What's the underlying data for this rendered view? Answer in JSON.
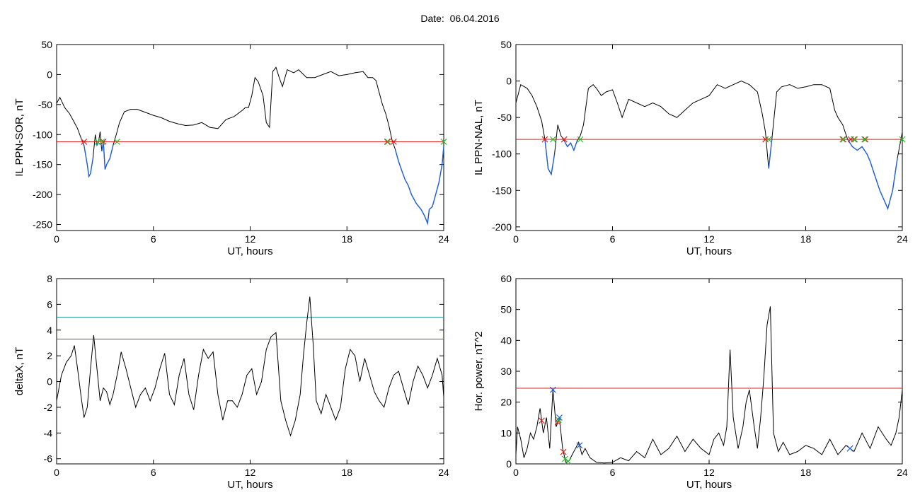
{
  "figure_title": "Date:  06.04.2016",
  "colors": {
    "signal": "#000000",
    "below_threshold": "#1f5fd6",
    "threshold": "#e02020",
    "upper_threshold": "#128a8a",
    "start_marker": "#e02020",
    "end_marker": "#2fc02f",
    "peak_marker": "#1f5fd6"
  },
  "chart_data": [
    {
      "type": "line",
      "xlabel": "UT, hours",
      "ylabel": "IL PPN-SOR, nT",
      "xlim": [
        0,
        24
      ],
      "ylim": [
        -260,
        50
      ],
      "xticks": [
        0,
        6,
        12,
        18,
        24
      ],
      "yticks": [
        50,
        0,
        -50,
        -100,
        -150,
        -200,
        -250
      ],
      "threshold": -112,
      "series": [
        {
          "x": [
            0,
            0.2,
            0.5,
            0.8,
            1.1,
            1.3,
            1.5,
            1.7,
            1.9,
            2.0,
            2.1,
            2.25,
            2.4,
            2.5,
            2.6,
            2.7,
            2.8,
            2.9,
            3.0,
            3.1,
            3.3,
            3.5,
            3.7,
            3.9,
            4.2,
            4.6,
            5.0,
            5.5,
            6.0,
            6.5,
            7.0,
            7.5,
            8.0,
            8.5,
            9.0,
            9.5,
            10.0,
            10.5,
            11.0,
            11.5,
            11.7,
            11.9,
            12.1,
            12.3,
            12.5,
            12.8,
            13.0,
            13.2,
            13.4,
            13.6,
            13.8,
            14.0,
            14.3,
            14.7,
            15.0,
            15.5,
            16.0,
            16.5,
            17.0,
            17.5,
            18.0,
            18.5,
            19.0,
            19.3,
            19.6,
            19.8,
            20.0,
            20.2,
            20.4,
            20.6,
            20.8,
            21.0,
            21.2,
            21.4,
            21.6,
            21.8,
            22.0,
            22.3,
            22.6,
            22.8,
            23.0,
            23.1,
            23.3,
            23.5,
            23.7,
            23.9,
            24.0
          ],
          "y": [
            -48,
            -38,
            -55,
            -65,
            -80,
            -90,
            -105,
            -118,
            -150,
            -170,
            -165,
            -140,
            -100,
            -118,
            -112,
            -95,
            -128,
            -112,
            -158,
            -150,
            -140,
            -118,
            -100,
            -80,
            -62,
            -58,
            -58,
            -63,
            -68,
            -72,
            -78,
            -82,
            -85,
            -84,
            -80,
            -88,
            -90,
            -75,
            -70,
            -60,
            -55,
            -55,
            -35,
            -5,
            -12,
            -35,
            -80,
            -88,
            5,
            12,
            -5,
            -20,
            8,
            3,
            8,
            -5,
            -5,
            0,
            5,
            -2,
            0,
            3,
            5,
            -5,
            -5,
            -10,
            -30,
            -50,
            -65,
            -85,
            -110,
            -125,
            -145,
            -160,
            -175,
            -185,
            -200,
            -215,
            -225,
            -235,
            -248,
            -225,
            -220,
            -200,
            -180,
            -150,
            -120
          ]
        }
      ],
      "start_markers_x": [
        1.7,
        2.9,
        20.5,
        20.9
      ],
      "end_markers_x": [
        2.55,
        2.8,
        3.75,
        20.55,
        24.0
      ]
    },
    {
      "type": "line",
      "xlabel": "UT, hours",
      "ylabel": "IL PPN-NAL, nT",
      "xlim": [
        0,
        24
      ],
      "ylim": [
        -205,
        50
      ],
      "xticks": [
        0,
        6,
        12,
        18,
        24
      ],
      "yticks": [
        50,
        0,
        -50,
        -100,
        -150,
        -200
      ],
      "threshold": -80,
      "series": [
        {
          "x": [
            0,
            0.3,
            0.7,
            1.0,
            1.3,
            1.6,
            1.8,
            2.0,
            2.2,
            2.4,
            2.6,
            2.8,
            3.0,
            3.2,
            3.4,
            3.6,
            3.8,
            4.0,
            4.2,
            4.5,
            4.8,
            5.0,
            5.3,
            5.6,
            6.0,
            6.3,
            6.6,
            7.0,
            7.5,
            8.0,
            8.5,
            9.0,
            9.5,
            10.0,
            10.5,
            11.0,
            11.5,
            12.0,
            12.5,
            13.0,
            13.5,
            14.0,
            14.5,
            15.0,
            15.3,
            15.5,
            15.7,
            15.9,
            16.2,
            16.5,
            17.0,
            17.5,
            18.0,
            18.5,
            19.0,
            19.5,
            19.8,
            20.0,
            20.3,
            20.6,
            20.9,
            21.2,
            21.5,
            21.8,
            22.0,
            22.3,
            22.6,
            22.9,
            23.1,
            23.4,
            23.7,
            24.0
          ],
          "y": [
            -30,
            -5,
            -10,
            -20,
            -35,
            -55,
            -80,
            -120,
            -128,
            -100,
            -60,
            -75,
            -82,
            -90,
            -85,
            -95,
            -82,
            -75,
            -60,
            -10,
            -5,
            -10,
            -20,
            -15,
            -12,
            -30,
            -50,
            -25,
            -30,
            -35,
            -30,
            -35,
            -45,
            -50,
            -40,
            -30,
            -25,
            -20,
            -5,
            -10,
            -5,
            0,
            -5,
            -15,
            -45,
            -70,
            -120,
            -80,
            -15,
            -8,
            -5,
            -10,
            -8,
            -5,
            -5,
            -10,
            -40,
            -50,
            -60,
            -80,
            -90,
            -95,
            -90,
            -100,
            -110,
            -130,
            -150,
            -165,
            -175,
            -150,
            -105,
            -70
          ]
        }
      ],
      "start_markers_x": [
        1.8,
        3.0,
        15.5,
        20.3,
        20.8,
        21.0,
        21.7
      ],
      "end_markers_x": [
        2.3,
        4.0,
        15.7,
        20.35,
        21.05,
        21.65,
        24.0
      ]
    },
    {
      "type": "line",
      "xlabel": "UT, hours",
      "ylabel": "deltaX, nT",
      "xlim": [
        0,
        24
      ],
      "ylim": [
        -6.4,
        8
      ],
      "xticks": [
        0,
        6,
        12,
        18,
        24
      ],
      "yticks": [
        8,
        6,
        4,
        2,
        0,
        -2,
        -4,
        -6
      ],
      "threshold": 3.3,
      "upper_threshold": 5.0,
      "series": [
        {
          "x": [
            0,
            0.3,
            0.6,
            0.9,
            1.1,
            1.3,
            1.5,
            1.7,
            1.9,
            2.1,
            2.3,
            2.5,
            2.7,
            2.9,
            3.1,
            3.3,
            3.5,
            3.8,
            4.0,
            4.3,
            4.6,
            4.9,
            5.2,
            5.5,
            5.8,
            6.1,
            6.4,
            6.7,
            7.0,
            7.3,
            7.6,
            7.9,
            8.2,
            8.5,
            8.8,
            9.1,
            9.4,
            9.7,
            10.0,
            10.3,
            10.6,
            10.9,
            11.2,
            11.5,
            11.8,
            12.1,
            12.4,
            12.7,
            13.0,
            13.3,
            13.6,
            13.9,
            14.2,
            14.5,
            14.8,
            15.1,
            15.3,
            15.5,
            15.7,
            15.9,
            16.1,
            16.4,
            16.7,
            17.0,
            17.3,
            17.6,
            17.9,
            18.2,
            18.5,
            18.8,
            19.1,
            19.4,
            19.7,
            20.0,
            20.3,
            20.6,
            20.9,
            21.2,
            21.5,
            21.8,
            22.1,
            22.4,
            22.7,
            23.0,
            23.3,
            23.6,
            23.9,
            24.0
          ],
          "y": [
            -1.5,
            0.5,
            1.5,
            2.0,
            2.8,
            1.0,
            -1.0,
            -2.8,
            -2.0,
            1.0,
            3.6,
            1.0,
            -1.5,
            -0.5,
            -0.8,
            -1.8,
            -1.0,
            0.8,
            2.3,
            1.0,
            -0.5,
            -2.0,
            -1.0,
            -0.5,
            -1.5,
            -0.5,
            1.0,
            2.2,
            -1.0,
            -1.8,
            0.5,
            1.8,
            -1.0,
            -2.2,
            0.5,
            2.5,
            1.8,
            2.3,
            -1.0,
            -3.0,
            -1.5,
            -1.5,
            -2.0,
            -1.0,
            0.5,
            1.0,
            -1.0,
            0.0,
            2.5,
            3.5,
            3.8,
            -1.5,
            -3.0,
            -4.2,
            -3.0,
            -1.0,
            2.0,
            4.5,
            6.6,
            3.0,
            -1.5,
            -2.5,
            -1.0,
            -2.0,
            -3.0,
            -2.0,
            1.0,
            2.5,
            2.0,
            0.0,
            1.8,
            0.5,
            -0.8,
            -1.5,
            -2.0,
            -0.5,
            0.5,
            0.8,
            -0.5,
            -1.8,
            0.0,
            1.2,
            0.5,
            -0.5,
            0.5,
            1.8,
            0.5,
            -1.2
          ]
        }
      ]
    },
    {
      "type": "line",
      "xlabel": "UT, hours",
      "ylabel": "Hor. power, nT^2",
      "xlim": [
        0,
        24
      ],
      "ylim": [
        0,
        60
      ],
      "xticks": [
        0,
        6,
        12,
        18,
        24
      ],
      "yticks": [
        60,
        50,
        40,
        30,
        20,
        10,
        0
      ],
      "threshold": 24.5,
      "series": [
        {
          "x": [
            0,
            0.1,
            0.3,
            0.5,
            0.7,
            0.9,
            1.1,
            1.3,
            1.5,
            1.7,
            1.9,
            2.1,
            2.3,
            2.5,
            2.7,
            2.9,
            3.1,
            3.3,
            3.5,
            3.7,
            3.9,
            4.1,
            4.3,
            4.6,
            5.0,
            5.5,
            6.0,
            6.5,
            7.0,
            7.5,
            8.0,
            8.5,
            9.0,
            9.5,
            10.0,
            10.5,
            11.0,
            11.5,
            12.0,
            12.3,
            12.6,
            12.9,
            13.1,
            13.3,
            13.5,
            13.8,
            14.1,
            14.3,
            14.5,
            14.8,
            15.0,
            15.2,
            15.4,
            15.6,
            15.8,
            16.0,
            16.3,
            16.6,
            17.0,
            17.5,
            18.0,
            18.5,
            19.0,
            19.5,
            20.0,
            20.5,
            21.0,
            21.5,
            22.0,
            22.5,
            23.0,
            23.3,
            23.6,
            23.8,
            24.0
          ],
          "y": [
            3,
            12,
            8,
            2,
            5,
            10,
            8,
            12,
            18,
            10,
            15,
            5,
            24,
            12,
            15,
            5,
            0.5,
            1,
            3,
            5,
            7,
            3,
            5,
            2,
            0.5,
            0.3,
            0.5,
            2,
            1,
            4,
            2,
            8,
            3,
            5,
            9,
            4,
            8,
            5,
            3,
            8,
            10,
            6,
            12,
            37,
            15,
            5,
            12,
            20,
            24,
            12,
            5,
            15,
            28,
            45,
            51,
            10,
            4,
            7,
            3,
            4,
            6,
            5,
            3,
            8,
            3,
            6,
            4,
            10,
            5,
            12,
            8,
            6,
            10,
            15,
            24
          ]
        }
      ],
      "start_markers_x": [
        1.6,
        2.6,
        2.95
      ],
      "end_markers_x": [
        2.65,
        3.05,
        3.25
      ],
      "peak_markers_x": [
        2.3,
        2.7,
        3.95,
        20.75
      ]
    }
  ]
}
